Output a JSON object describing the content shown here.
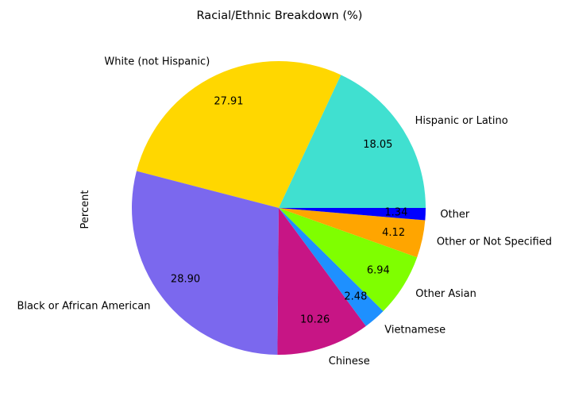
{
  "chart_data": {
    "type": "pie",
    "title": "Racial/Ethnic Breakdown (%)",
    "ylabel": "Percent",
    "categories": [
      "Hispanic or Latino",
      "White (not Hispanic)",
      "Black or African American",
      "Chinese",
      "Vietnamese",
      "Other Asian",
      "Other or Not Specified",
      "Other"
    ],
    "values": [
      18.05,
      27.91,
      28.9,
      10.26,
      2.48,
      6.94,
      4.12,
      1.34
    ],
    "value_labels": [
      "18.05",
      "27.91",
      "28.90",
      "10.26",
      "2.48",
      "6.94",
      "4.12",
      "1.34"
    ],
    "colors": [
      "#40E0D0",
      "#FFD700",
      "#7B68EE",
      "#C71585",
      "#1E90FF",
      "#7FFF00",
      "#FFA500",
      "#0000FF"
    ],
    "start_angle_deg": 0,
    "direction": "counterclockwise"
  }
}
